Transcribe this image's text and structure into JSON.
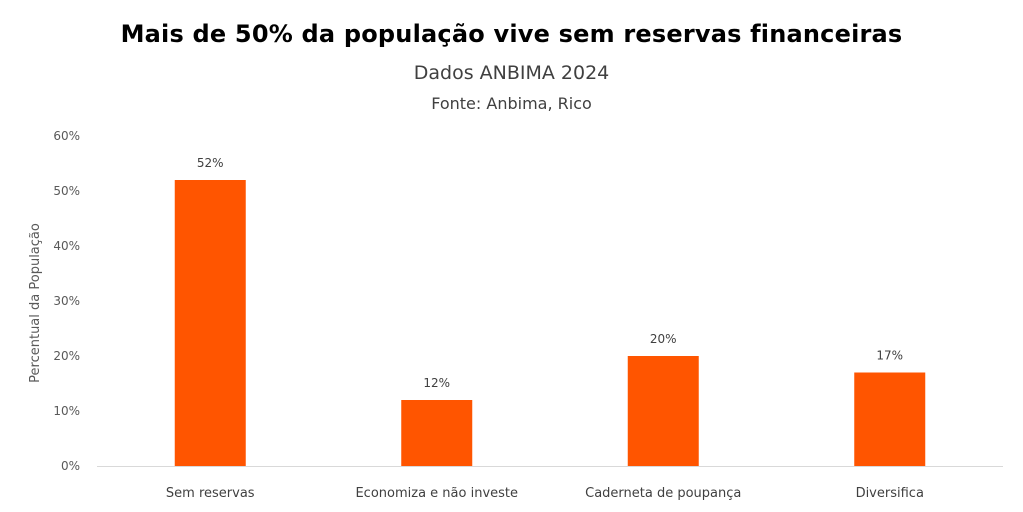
{
  "chart_data": {
    "type": "bar",
    "title": "Mais de 50% da população vive sem reservas financeiras",
    "subtitle": "Dados ANBIMA 2024",
    "source": "Fonte: Anbima, Rico",
    "xlabel": "",
    "ylabel": "Percentual da População",
    "categories": [
      "Sem reservas",
      "Economiza e não investe",
      "Caderneta de poupança",
      "Diversifica"
    ],
    "values": [
      52,
      12,
      20,
      17
    ],
    "data_labels": [
      "52%",
      "12%",
      "20%",
      "17%"
    ],
    "ylim": [
      0,
      60
    ],
    "yticks": [
      0,
      10,
      20,
      30,
      40,
      50,
      60
    ],
    "ytick_labels": [
      "0%",
      "10%",
      "20%",
      "30%",
      "40%",
      "50%",
      "60%"
    ],
    "grid": false,
    "legend": "none",
    "bar_color": "#ff5500"
  }
}
